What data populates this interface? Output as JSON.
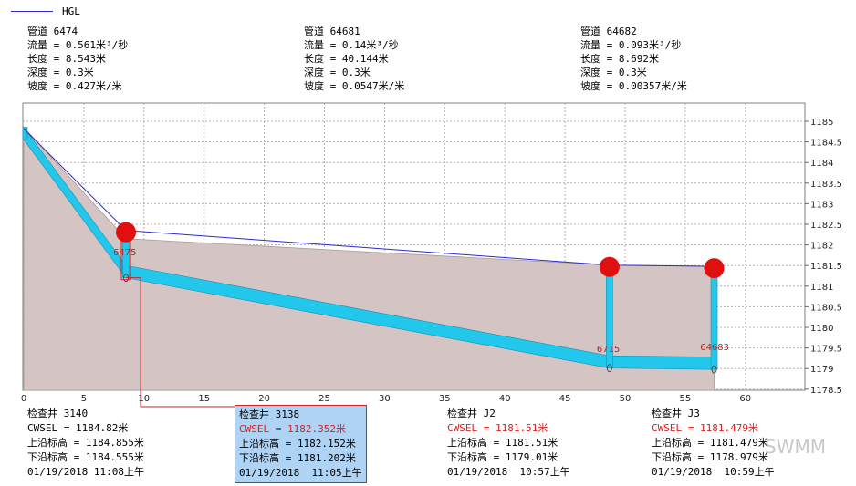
{
  "legend": {
    "label": "HGL",
    "color": "#2a2ad0"
  },
  "pipes": [
    {
      "title": "管道 6474",
      "flow": "流量 = 0.561米³/秒",
      "length": "长度 = 8.543米",
      "depth": "深度 = 0.3米",
      "slope": "坡度 = 0.427米/米"
    },
    {
      "title": "管道 64681",
      "flow": "流量 = 0.14米³/秒",
      "length": "长度 = 40.144米",
      "depth": "深度 = 0.3米",
      "slope": "坡度 = 0.0547米/米"
    },
    {
      "title": "管道 64682",
      "flow": "流量 = 0.093米³/秒",
      "length": "长度 = 8.692米",
      "depth": "深度 = 0.3米",
      "slope": "坡度 = 0.00357米/米"
    }
  ],
  "nodes": [
    {
      "title": "检查井 3140",
      "cwsel": "CWSEL = 1184.82米",
      "top": "上沿标高 = 1184.855米",
      "bottom": "下沿标高 = 1184.555米",
      "time": "01/19/2018 11:08上午"
    },
    {
      "title": "检查井 3138",
      "cwsel": "CWSEL = 1182.352米",
      "top": "上沿标高 = 1182.152米",
      "bottom": "下沿标高 = 1181.202米",
      "time": "01/19/2018  11:05上午"
    },
    {
      "title": "检查井 J2",
      "cwsel": "CWSEL = 1181.51米",
      "top": "上沿标高 = 1181.51米",
      "bottom": "下沿标高 = 1179.01米",
      "time": "01/19/2018  10:57上午"
    },
    {
      "title": "检查井 J3",
      "cwsel": "CWSEL = 1181.479米",
      "top": "上沿标高 = 1181.479米",
      "bottom": "下沿标高 = 1178.979米",
      "time": "01/19/2018  10:59上午"
    }
  ],
  "watermark": {
    "text": "SWMM"
  },
  "colors": {
    "ground": "#d5c4c4",
    "pipe": "#22c8ec",
    "node_marker": "#e01010",
    "hgl": "#2a2ad0",
    "grid": "#b0b0b0",
    "selected_bg": "#aed3f5"
  },
  "chart_data": {
    "type": "profile",
    "x_ticks": [
      0,
      5,
      10,
      15,
      20,
      25,
      30,
      35,
      40,
      45,
      50,
      55,
      60
    ],
    "y_ticks": [
      1178.5,
      1179,
      1179.5,
      1180,
      1180.5,
      1181,
      1181.5,
      1182,
      1182.5,
      1183,
      1183.5,
      1184,
      1184.5,
      1185
    ],
    "xlim": [
      0,
      65
    ],
    "ylim": [
      1178.4,
      1185.4
    ],
    "node_labels": [
      {
        "label": "6475",
        "x": 8.5,
        "y": 1181.75
      },
      {
        "label": "6715",
        "x": 48.7,
        "y": 1179.4
      },
      {
        "label": "64683",
        "x": 57.3,
        "y": 1179.45
      }
    ],
    "nodes": [
      {
        "x": 0.0,
        "invert": 1184.555,
        "rim": 1184.855,
        "hgl": 1184.82,
        "marker": false
      },
      {
        "x": 8.5,
        "invert": 1181.202,
        "rim": 1182.152,
        "hgl": 1182.352,
        "marker": true
      },
      {
        "x": 48.7,
        "invert": 1179.01,
        "rim": 1181.51,
        "hgl": 1181.51,
        "marker": true
      },
      {
        "x": 57.4,
        "invert": 1178.979,
        "rim": 1181.479,
        "hgl": 1181.479,
        "marker": true
      }
    ],
    "pipe_depth": 0.3,
    "ground": [
      [
        0,
        1184.855
      ],
      [
        8.5,
        1182.152
      ],
      [
        48.7,
        1181.51
      ],
      [
        57.4,
        1181.479
      ]
    ]
  }
}
